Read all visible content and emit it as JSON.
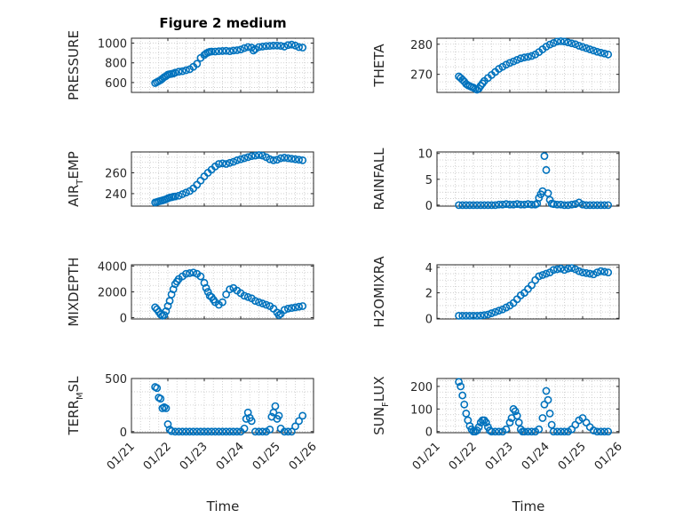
{
  "figure": {
    "title": "Figure 2 medium"
  },
  "colors": {
    "marker": "#0072BD",
    "axis": "#262626",
    "grid": "#c8c8c8"
  },
  "chart_data": [
    {
      "type": "scatter",
      "ylabel_main": "PRESSURE",
      "ylabel_sub": "",
      "ylabel_tail": "",
      "ylim": [
        500,
        1050
      ],
      "yticks": [
        "600",
        "800",
        "1000"
      ],
      "x_ticks": [
        "01/21",
        "01/22",
        "01/23",
        "01/24",
        "01/25",
        "01/26"
      ],
      "xlim": [
        21,
        26
      ],
      "x": [
        21.65,
        21.7,
        21.75,
        21.8,
        21.85,
        21.9,
        21.95,
        22.0,
        22.05,
        22.1,
        22.15,
        22.2,
        22.3,
        22.4,
        22.5,
        22.6,
        22.7,
        22.8,
        22.9,
        23.0,
        23.05,
        23.1,
        23.15,
        23.2,
        23.3,
        23.4,
        23.5,
        23.6,
        23.7,
        23.8,
        23.9,
        24.0,
        24.1,
        24.2,
        24.3,
        24.35,
        24.4,
        24.5,
        24.6,
        24.7,
        24.8,
        24.9,
        25.0,
        25.1,
        25.2,
        25.3,
        25.4,
        25.5,
        25.6,
        25.7
      ],
      "y": [
        595,
        605,
        615,
        625,
        640,
        655,
        665,
        680,
        685,
        688,
        692,
        700,
        710,
        715,
        725,
        735,
        760,
        790,
        850,
        880,
        895,
        905,
        912,
        915,
        915,
        918,
        920,
        922,
        918,
        925,
        928,
        935,
        950,
        960,
        955,
        925,
        940,
        960,
        965,
        970,
        972,
        975,
        975,
        972,
        965,
        980,
        985,
        975,
        960,
        955
      ]
    },
    {
      "type": "scatter",
      "ylabel_main": "THETA",
      "ylabel_sub": "",
      "ylabel_tail": "",
      "ylim": [
        264,
        282
      ],
      "yticks": [
        "270",
        "280"
      ],
      "x_ticks": [
        "01/21",
        "01/22",
        "01/23",
        "01/24",
        "01/25",
        "01/26"
      ],
      "xlim": [
        21,
        26
      ],
      "x": [
        21.6,
        21.65,
        21.7,
        21.75,
        21.8,
        21.85,
        21.9,
        21.95,
        22.0,
        22.05,
        22.1,
        22.15,
        22.2,
        22.25,
        22.3,
        22.4,
        22.5,
        22.6,
        22.7,
        22.8,
        22.9,
        23.0,
        23.1,
        23.2,
        23.3,
        23.4,
        23.5,
        23.6,
        23.7,
        23.8,
        23.9,
        24.0,
        24.1,
        24.2,
        24.3,
        24.4,
        24.5,
        24.6,
        24.7,
        24.8,
        24.9,
        25.0,
        25.1,
        25.2,
        25.3,
        25.4,
        25.5,
        25.6,
        25.7
      ],
      "y": [
        269.3,
        268.8,
        268.2,
        267.6,
        266.8,
        266.4,
        266.1,
        265.8,
        265.6,
        265.2,
        264.9,
        265.3,
        266.2,
        267.0,
        267.8,
        268.8,
        269.8,
        270.8,
        271.8,
        272.5,
        273.2,
        273.8,
        274.3,
        274.8,
        275.3,
        275.6,
        275.8,
        276.1,
        276.6,
        277.4,
        278.3,
        279.2,
        279.9,
        280.4,
        280.9,
        281.0,
        280.9,
        280.6,
        280.3,
        280.0,
        279.5,
        279.1,
        278.7,
        278.3,
        277.9,
        277.5,
        277.2,
        276.9,
        276.6
      ]
    },
    {
      "type": "scatter",
      "ylabel_main": "AIR",
      "ylabel_sub": "T",
      "ylabel_tail": "EMP",
      "ylim": [
        228,
        280
      ],
      "yticks": [
        "240",
        "260"
      ],
      "x_ticks": [
        "01/21",
        "01/22",
        "01/23",
        "01/24",
        "01/25",
        "01/26"
      ],
      "xlim": [
        21,
        26
      ],
      "x": [
        21.65,
        21.7,
        21.75,
        21.8,
        21.85,
        21.9,
        21.95,
        22.0,
        22.05,
        22.1,
        22.15,
        22.2,
        22.3,
        22.4,
        22.5,
        22.6,
        22.7,
        22.8,
        22.9,
        23.0,
        23.1,
        23.2,
        23.3,
        23.4,
        23.5,
        23.6,
        23.7,
        23.8,
        23.9,
        24.0,
        24.1,
        24.2,
        24.3,
        24.4,
        24.5,
        24.6,
        24.7,
        24.8,
        24.9,
        25.0,
        25.1,
        25.2,
        25.3,
        25.4,
        25.5,
        25.6,
        25.7
      ],
      "y": [
        231.5,
        232.0,
        232.6,
        233.0,
        233.5,
        234.0,
        234.6,
        235.5,
        236.2,
        236.5,
        237.0,
        237.3,
        238.0,
        239.5,
        241.0,
        242.5,
        245.0,
        248.5,
        252.5,
        256.5,
        260.0,
        263.0,
        266.0,
        268.5,
        269.0,
        268.5,
        269.5,
        270.5,
        272.0,
        273.0,
        274.0,
        275.0,
        276.0,
        276.5,
        277.0,
        276.5,
        275.0,
        273.0,
        272.0,
        272.5,
        274.0,
        274.5,
        274.0,
        273.5,
        273.0,
        272.5,
        272.0
      ]
    },
    {
      "type": "scatter",
      "ylabel_main": "RAINFALL",
      "ylabel_sub": "",
      "ylabel_tail": "",
      "ylim": [
        -0.2,
        10.3
      ],
      "yticks": [
        "0",
        "5",
        "10"
      ],
      "x_ticks": [
        "01/21",
        "01/22",
        "01/23",
        "01/24",
        "01/25",
        "01/26"
      ],
      "xlim": [
        21,
        26
      ],
      "x": [
        21.6,
        21.7,
        21.8,
        21.9,
        22.0,
        22.1,
        22.2,
        22.3,
        22.4,
        22.5,
        22.6,
        22.7,
        22.8,
        22.9,
        23.0,
        23.1,
        23.2,
        23.3,
        23.4,
        23.5,
        23.6,
        23.7,
        23.75,
        23.8,
        23.85,
        23.9,
        23.95,
        24.0,
        24.05,
        24.1,
        24.15,
        24.2,
        24.3,
        24.4,
        24.5,
        24.6,
        24.7,
        24.8,
        24.9,
        25.0,
        25.1,
        25.2,
        25.3,
        25.4,
        25.5,
        25.6,
        25.7
      ],
      "y": [
        0,
        0,
        0,
        0,
        0,
        0,
        0,
        0,
        0,
        0,
        0,
        0.1,
        0.1,
        0.2,
        0.1,
        0.1,
        0.2,
        0.1,
        0.1,
        0.2,
        0.1,
        0.1,
        0.3,
        1.4,
        2.1,
        2.7,
        9.5,
        6.8,
        2.3,
        1.0,
        0.3,
        0.2,
        0.1,
        0.1,
        0,
        0,
        0.1,
        0.2,
        0.5,
        0.1,
        0,
        0,
        0,
        0,
        0,
        0,
        0
      ]
    },
    {
      "type": "scatter",
      "ylabel_main": "MIXDEPTH",
      "ylabel_sub": "",
      "ylabel_tail": "",
      "ylim": [
        -100,
        4100
      ],
      "yticks": [
        "0",
        "2000",
        "4000"
      ],
      "x_ticks": [
        "01/21",
        "01/22",
        "01/23",
        "01/24",
        "01/25",
        "01/26"
      ],
      "xlim": [
        21,
        26
      ],
      "x": [
        21.65,
        21.7,
        21.75,
        21.8,
        21.85,
        21.9,
        21.95,
        22.0,
        22.05,
        22.1,
        22.15,
        22.2,
        22.25,
        22.3,
        22.4,
        22.5,
        22.6,
        22.7,
        22.8,
        22.9,
        23.0,
        23.05,
        23.1,
        23.15,
        23.2,
        23.25,
        23.3,
        23.4,
        23.5,
        23.6,
        23.7,
        23.8,
        23.9,
        24.0,
        24.1,
        24.2,
        24.3,
        24.4,
        24.5,
        24.6,
        24.7,
        24.8,
        24.9,
        25.0,
        25.05,
        25.1,
        25.2,
        25.3,
        25.4,
        25.5,
        25.6,
        25.7
      ],
      "y": [
        800,
        650,
        450,
        250,
        150,
        200,
        500,
        900,
        1300,
        1800,
        2200,
        2600,
        2800,
        3000,
        3200,
        3400,
        3450,
        3500,
        3400,
        3200,
        2700,
        2300,
        2000,
        1700,
        1600,
        1400,
        1200,
        1000,
        1200,
        1800,
        2200,
        2300,
        2100,
        1900,
        1700,
        1600,
        1500,
        1300,
        1200,
        1100,
        1000,
        900,
        700,
        400,
        200,
        300,
        600,
        700,
        750,
        800,
        850,
        900
      ]
    },
    {
      "type": "scatter",
      "ylabel_main": "H2OMIXRA",
      "ylabel_sub": "",
      "ylabel_tail": "",
      "ylim": [
        -0.05,
        4.2
      ],
      "yticks": [
        "0",
        "2",
        "4"
      ],
      "x_ticks": [
        "01/21",
        "01/22",
        "01/23",
        "01/24",
        "01/25",
        "01/26"
      ],
      "xlim": [
        21,
        26
      ],
      "x": [
        21.6,
        21.7,
        21.8,
        21.9,
        22.0,
        22.1,
        22.2,
        22.3,
        22.4,
        22.5,
        22.6,
        22.7,
        22.8,
        22.9,
        23.0,
        23.1,
        23.2,
        23.3,
        23.4,
        23.5,
        23.6,
        23.7,
        23.8,
        23.9,
        24.0,
        24.1,
        24.2,
        24.3,
        24.4,
        24.5,
        24.6,
        24.7,
        24.8,
        24.9,
        25.0,
        25.1,
        25.2,
        25.3,
        25.4,
        25.5,
        25.6,
        25.7
      ],
      "y": [
        0.2,
        0.2,
        0.2,
        0.2,
        0.2,
        0.2,
        0.22,
        0.25,
        0.3,
        0.4,
        0.5,
        0.6,
        0.7,
        0.85,
        1.0,
        1.2,
        1.5,
        1.8,
        2.0,
        2.3,
        2.6,
        3.0,
        3.3,
        3.4,
        3.5,
        3.6,
        3.8,
        3.85,
        3.9,
        3.8,
        3.9,
        3.95,
        3.85,
        3.7,
        3.6,
        3.55,
        3.5,
        3.45,
        3.6,
        3.7,
        3.65,
        3.6
      ]
    },
    {
      "type": "scatter",
      "ylabel_main": "TERR",
      "ylabel_sub": "M",
      "ylabel_tail": "SL",
      "ylim": [
        -10,
        500
      ],
      "yticks": [
        "0",
        "500"
      ],
      "x_ticks": [
        "01/21",
        "01/22",
        "01/23",
        "01/24",
        "01/25",
        "01/26"
      ],
      "xlim": [
        21,
        26
      ],
      "x": [
        21.65,
        21.7,
        21.75,
        21.8,
        21.85,
        21.9,
        21.95,
        22.0,
        22.05,
        22.1,
        22.2,
        22.3,
        22.4,
        22.5,
        22.6,
        22.7,
        22.8,
        22.9,
        23.0,
        23.1,
        23.2,
        23.3,
        23.4,
        23.5,
        23.6,
        23.7,
        23.8,
        23.9,
        24.0,
        24.1,
        24.15,
        24.2,
        24.25,
        24.3,
        24.4,
        24.5,
        24.6,
        24.7,
        24.8,
        24.85,
        24.9,
        24.95,
        25.0,
        25.05,
        25.1,
        25.2,
        25.3,
        25.4,
        25.5,
        25.6,
        25.7
      ],
      "y": [
        420,
        410,
        320,
        310,
        220,
        230,
        220,
        70,
        20,
        5,
        0,
        0,
        0,
        0,
        0,
        0,
        0,
        0,
        0,
        0,
        0,
        0,
        0,
        0,
        0,
        0,
        0,
        0,
        0,
        30,
        120,
        180,
        130,
        100,
        0,
        0,
        0,
        0,
        20,
        140,
        180,
        240,
        120,
        150,
        30,
        0,
        0,
        0,
        50,
        100,
        150
      ]
    },
    {
      "type": "scatter",
      "ylabel_main": "SUN",
      "ylabel_sub": "F",
      "ylabel_tail": "LUX",
      "ylim": [
        -5,
        235
      ],
      "yticks": [
        "0",
        "100",
        "200"
      ],
      "x_ticks": [
        "01/21",
        "01/22",
        "01/23",
        "01/24",
        "01/25",
        "01/26"
      ],
      "xlim": [
        21,
        26
      ],
      "x": [
        21.6,
        21.65,
        21.7,
        21.75,
        21.8,
        21.85,
        21.9,
        21.95,
        22.0,
        22.05,
        22.1,
        22.15,
        22.2,
        22.25,
        22.3,
        22.35,
        22.4,
        22.45,
        22.5,
        22.6,
        22.7,
        22.8,
        22.9,
        23.0,
        23.05,
        23.1,
        23.15,
        23.2,
        23.25,
        23.3,
        23.35,
        23.4,
        23.5,
        23.6,
        23.7,
        23.8,
        23.9,
        23.95,
        24.0,
        24.05,
        24.1,
        24.15,
        24.2,
        24.3,
        24.4,
        24.5,
        24.6,
        24.7,
        24.8,
        24.9,
        25.0,
        25.1,
        25.2,
        25.3,
        25.4,
        25.5,
        25.6,
        25.7
      ],
      "y": [
        220,
        200,
        160,
        120,
        80,
        50,
        25,
        10,
        0,
        0,
        5,
        20,
        40,
        50,
        50,
        40,
        20,
        5,
        0,
        0,
        0,
        0,
        10,
        40,
        60,
        100,
        90,
        70,
        40,
        10,
        0,
        0,
        0,
        0,
        0,
        10,
        60,
        120,
        180,
        140,
        80,
        30,
        0,
        0,
        0,
        0,
        0,
        10,
        30,
        50,
        60,
        40,
        20,
        5,
        0,
        0,
        0,
        0
      ]
    }
  ],
  "x_axis": {
    "label": "Time"
  }
}
